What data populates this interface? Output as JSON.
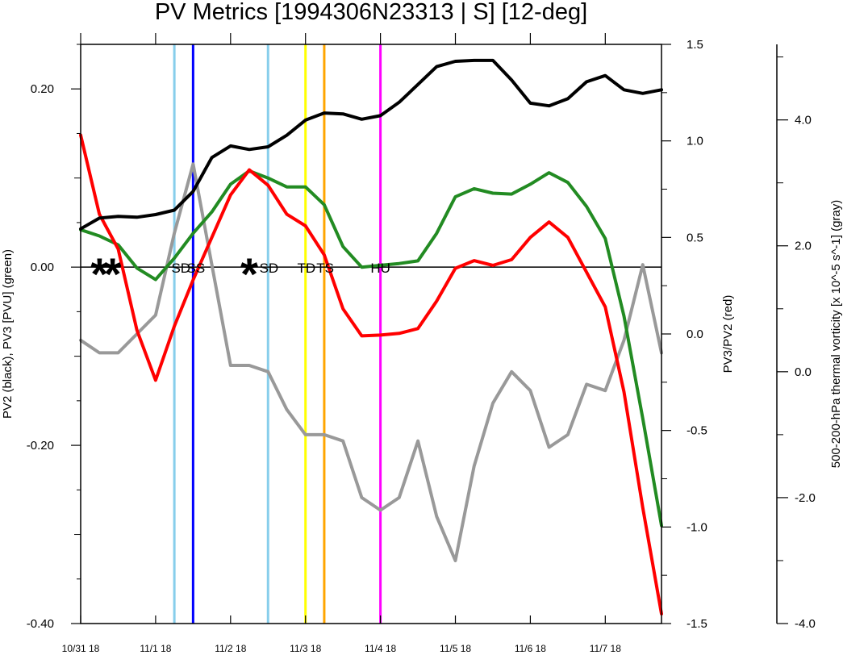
{
  "chart_data": {
    "type": "line",
    "title": "PV Metrics [1994306N23313 | S] [12-deg]",
    "left_axis": {
      "label": "PV2 (black), PV3 [PVU] (green)",
      "ylim": [
        -0.4,
        0.25
      ],
      "tick_labels": [
        "-0.40",
        "-0.20",
        "0.00",
        "0.20"
      ],
      "tick_values": [
        -0.4,
        -0.2,
        0.0,
        0.2
      ],
      "minor_values": [
        -0.3,
        -0.1,
        0.1
      ]
    },
    "right_axis": {
      "label": "PV3/PV2 (red)",
      "ylim": [
        -1.5,
        1.5
      ],
      "tick_labels": [
        "-1.5",
        "-1.0",
        "-0.5",
        "0.0",
        "0.5",
        "1.0",
        "1.5"
      ],
      "tick_values": [
        -1.5,
        -1.0,
        -0.5,
        0.0,
        0.5,
        1.0,
        1.5
      ]
    },
    "far_right_axis": {
      "label": "500-200-hPa thermal vorticity [x 10^-5 s^-1] (gray)",
      "ylim": [
        -4.0,
        5.2
      ],
      "tick_labels": [
        "-4.0",
        "-2.0",
        "0.0",
        "2.0",
        "4.0"
      ],
      "tick_values": [
        -4.0,
        -2.0,
        0.0,
        2.0,
        4.0
      ],
      "minor_values": [
        -3.0,
        -1.0,
        1.0,
        3.0,
        5.0
      ]
    },
    "x_axis": {
      "range": [
        0,
        31
      ],
      "tick_labels": [
        "10/31 18",
        "11/1 18",
        "11/2 18",
        "11/3 18",
        "11/4 18",
        "11/5 18",
        "11/6 18",
        "11/7 18"
      ],
      "tick_values": [
        0,
        4,
        8,
        12,
        16,
        20,
        24,
        28
      ]
    },
    "x": [
      0,
      1,
      2,
      3,
      4,
      5,
      6,
      7,
      8,
      9,
      10,
      11,
      12,
      13,
      14,
      15,
      16,
      17,
      18,
      19,
      20,
      21,
      22,
      23,
      24,
      25,
      26,
      27,
      28,
      29,
      30,
      31
    ],
    "series": [
      {
        "name": "PV2",
        "axis": "left",
        "color": "#000000",
        "values": [
          0.043,
          0.055,
          0.057,
          0.056,
          0.059,
          0.064,
          0.085,
          0.123,
          0.136,
          0.132,
          0.135,
          0.148,
          0.165,
          0.173,
          0.172,
          0.166,
          0.17,
          0.185,
          0.205,
          0.225,
          0.231,
          0.232,
          0.232,
          0.21,
          0.184,
          0.181,
          0.189,
          0.208,
          0.215,
          0.199,
          0.195,
          0.199
        ]
      },
      {
        "name": "PV3",
        "axis": "left",
        "color": "#228b22",
        "values": [
          0.042,
          0.035,
          0.025,
          -0.001,
          -0.014,
          0.01,
          0.038,
          0.062,
          0.093,
          0.108,
          0.1,
          0.09,
          0.09,
          0.07,
          0.023,
          0.0,
          0.002,
          0.004,
          0.007,
          0.038,
          0.079,
          0.088,
          0.083,
          0.082,
          0.093,
          0.106,
          0.095,
          0.068,
          0.032,
          -0.055,
          -0.17,
          -0.29
        ]
      },
      {
        "name": "PV3/PV2",
        "axis": "right",
        "color": "#ff0000",
        "values": [
          1.03,
          0.62,
          0.44,
          0.02,
          -0.24,
          0.04,
          0.28,
          0.5,
          0.72,
          0.85,
          0.77,
          0.62,
          0.56,
          0.41,
          0.13,
          -0.01,
          -0.006,
          0.003,
          0.028,
          0.17,
          0.34,
          0.38,
          0.355,
          0.385,
          0.5,
          0.58,
          0.5,
          0.32,
          0.14,
          -0.3,
          -0.9,
          -1.45
        ]
      },
      {
        "name": "thermal vorticity",
        "axis": "far_right",
        "color": "#999999",
        "values": [
          0.5,
          0.3,
          0.3,
          0.6,
          0.9,
          2.2,
          3.3,
          1.7,
          0.1,
          0.1,
          0.0,
          -0.6,
          -1.0,
          -1.0,
          -1.1,
          -2.0,
          -2.2,
          -2.0,
          -1.1,
          -2.3,
          -3.0,
          -1.5,
          -0.5,
          0.0,
          -0.3,
          -1.2,
          -1.0,
          -0.2,
          -0.3,
          0.5,
          1.7,
          0.3
        ]
      }
    ],
    "vertical_lines": [
      {
        "x": 5,
        "color": "#87ceeb"
      },
      {
        "x": 6,
        "color": "#0000ff"
      },
      {
        "x": 10,
        "color": "#87ceeb"
      },
      {
        "x": 12,
        "color": "#ffff00"
      },
      {
        "x": 13,
        "color": "#ffa500"
      },
      {
        "x": 16,
        "color": "#ff00ff"
      }
    ],
    "stage_labels": [
      {
        "x": 5.35,
        "text": "SD"
      },
      {
        "x": 6.15,
        "text": "SS"
      },
      {
        "x": 10.05,
        "text": "SD"
      },
      {
        "x": 12.05,
        "text": "TD"
      },
      {
        "x": 13.05,
        "text": "TS"
      },
      {
        "x": 16.0,
        "text": "HU"
      }
    ],
    "markers": [
      {
        "x": 1,
        "text": "*"
      },
      {
        "x": 1.7,
        "text": "*"
      },
      {
        "x": 9,
        "text": "*"
      }
    ]
  }
}
